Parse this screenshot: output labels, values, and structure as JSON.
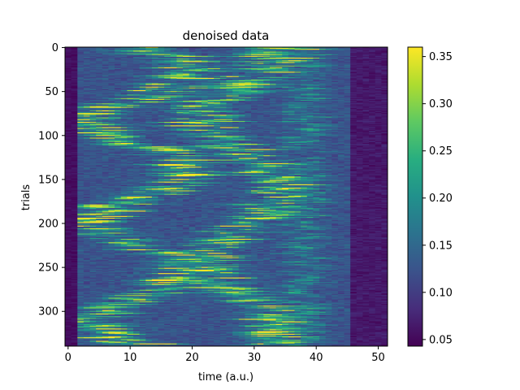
{
  "chart_data": {
    "type": "heatmap",
    "title": "denoised data",
    "xlabel": "time (a.u.)",
    "ylabel": "trials",
    "x_range": [
      -0.5,
      51.5
    ],
    "y_range": [
      -0.5,
      339.5
    ],
    "y_inverted": true,
    "n_time_bins": 52,
    "n_trials": 340,
    "x_ticks": [
      0,
      10,
      20,
      30,
      40,
      50
    ],
    "y_ticks": [
      0,
      50,
      100,
      150,
      200,
      250,
      300
    ],
    "colormap": "viridis",
    "colorbar": {
      "range": [
        0.043,
        0.36
      ],
      "ticks": [
        0.05,
        0.1,
        0.15,
        0.2,
        0.25,
        0.3,
        0.35
      ],
      "tick_labels": [
        "0.05",
        "0.10",
        "0.15",
        "0.20",
        "0.25",
        "0.30",
        "0.35"
      ]
    },
    "pattern": {
      "description_free": false,
      "baseline": 0.045,
      "peak": 0.36,
      "active_time_band": [
        2,
        45
      ]
    },
    "grid": false,
    "legend": "none"
  }
}
